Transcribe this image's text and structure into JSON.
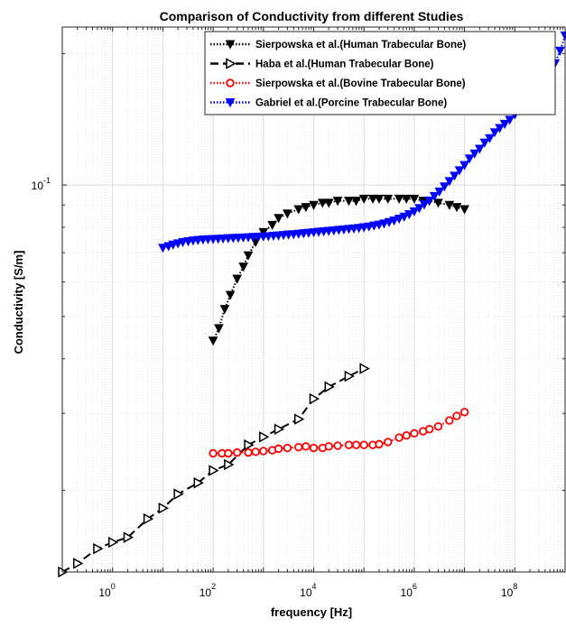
{
  "chart_data": {
    "type": "scatter",
    "title": "Comparison of Conductivity from different Studies",
    "xlabel": "frequency [Hz]",
    "ylabel": "Conductivity [S/m]",
    "xscale": "log",
    "yscale": "log",
    "xlim": [
      0.1,
      1000000000
    ],
    "ylim": [
      0.013,
      0.23
    ],
    "grid": true,
    "legend_position": "top-right",
    "x_ticks": [
      {
        "base": "10",
        "exp": "0",
        "value": 1
      },
      {
        "base": "10",
        "exp": "2",
        "value": 100
      },
      {
        "base": "10",
        "exp": "4",
        "value": 10000
      },
      {
        "base": "10",
        "exp": "6",
        "value": 1000000
      },
      {
        "base": "10",
        "exp": "8",
        "value": 100000000
      }
    ],
    "y_ticks": [
      {
        "base": "10",
        "exp": "-1",
        "value": 0.1
      }
    ],
    "series": [
      {
        "name": "Sierpowska et al.(Human Trabecular Bone)",
        "color": "#000000",
        "line": "dotted",
        "marker": "filled-triangle-down",
        "x": [
          100,
          130,
          170,
          220,
          300,
          400,
          500,
          700,
          1000,
          1500,
          2000,
          3000,
          5000,
          7000,
          10000,
          15000,
          20000,
          30000,
          50000,
          70000,
          100000,
          150000,
          200000,
          300000,
          500000,
          700000,
          1000000,
          1500000,
          2000000,
          3000000,
          5000000,
          7000000,
          10000000
        ],
        "y": [
          0.044,
          0.047,
          0.052,
          0.056,
          0.061,
          0.065,
          0.069,
          0.074,
          0.078,
          0.081,
          0.084,
          0.086,
          0.088,
          0.089,
          0.09,
          0.091,
          0.091,
          0.092,
          0.092,
          0.092,
          0.093,
          0.093,
          0.093,
          0.093,
          0.093,
          0.093,
          0.093,
          0.092,
          0.092,
          0.091,
          0.09,
          0.089,
          0.088
        ]
      },
      {
        "name": "Haba et al.(Human Trabecular Bone)",
        "color": "#000000",
        "line": "dashed",
        "marker": "open-triangle-right",
        "x": [
          0.1,
          0.2,
          0.5,
          1,
          2,
          5,
          10,
          20,
          50,
          100,
          200,
          500,
          1000,
          2000,
          5000,
          10000,
          20000,
          50000,
          100000
        ],
        "y": [
          0.013,
          0.0136,
          0.0147,
          0.0152,
          0.0156,
          0.0172,
          0.0182,
          0.0196,
          0.0208,
          0.0222,
          0.0229,
          0.0254,
          0.0265,
          0.0276,
          0.0291,
          0.0324,
          0.0345,
          0.0365,
          0.038
        ]
      },
      {
        "name": "Sierpowska et al.(Bovine Trabecular Bone)",
        "color": "#ff0000",
        "line": "dotted",
        "marker": "open-circle",
        "x": [
          100,
          150,
          200,
          300,
          500,
          700,
          1000,
          1500,
          2000,
          3000,
          5000,
          7000,
          10000,
          15000,
          20000,
          30000,
          50000,
          70000,
          100000,
          150000,
          200000,
          300000,
          500000,
          700000,
          1000000,
          1500000,
          2000000,
          3000000,
          5000000,
          7000000,
          10000000
        ],
        "y": [
          0.0243,
          0.0243,
          0.0243,
          0.0244,
          0.0244,
          0.0245,
          0.0246,
          0.0247,
          0.0249,
          0.025,
          0.0251,
          0.0252,
          0.025,
          0.025,
          0.0252,
          0.0253,
          0.0254,
          0.0254,
          0.0254,
          0.0254,
          0.0255,
          0.0258,
          0.0264,
          0.0267,
          0.027,
          0.0273,
          0.0276,
          0.028,
          0.0289,
          0.0296,
          0.0302
        ]
      },
      {
        "name": "Gabriel et al.(Porcine Trabecular Bone)",
        "color": "#0000ff",
        "line": "dotted",
        "marker": "filled-triangle-down",
        "x": [
          10,
          13,
          16,
          20,
          25,
          32,
          40,
          50,
          63,
          79,
          100,
          126,
          158,
          200,
          251,
          316,
          398,
          501,
          631,
          794,
          1000,
          1259,
          1585,
          1995,
          2512,
          3162,
          3981,
          5012,
          6310,
          7943,
          10000,
          12589,
          15849,
          19953,
          25119,
          31623,
          39811,
          50119,
          63096,
          79433,
          100000,
          125893,
          158489,
          199526,
          251189,
          316228,
          398107,
          501187,
          630957,
          794328,
          1000000,
          1258925,
          1584893,
          1995262,
          2511886,
          3162278,
          3981072,
          5011872,
          6309573,
          7943282,
          10000000,
          12589254,
          15848932,
          19952623,
          25118864,
          31622777,
          39810717,
          50118723,
          63095734,
          79432823,
          100000000,
          125892541,
          158489319,
          199526231,
          251188643,
          316227766,
          398107171,
          501187234,
          630957344,
          794328235,
          1000000000
        ],
        "y": [
          0.0718,
          0.0724,
          0.073,
          0.0735,
          0.074,
          0.0743,
          0.0746,
          0.0748,
          0.075,
          0.0751,
          0.0752,
          0.0753,
          0.0754,
          0.0755,
          0.0756,
          0.0757,
          0.0758,
          0.0759,
          0.076,
          0.0761,
          0.0762,
          0.0763,
          0.0765,
          0.0766,
          0.0768,
          0.077,
          0.0771,
          0.0773,
          0.0775,
          0.0777,
          0.0779,
          0.0781,
          0.0783,
          0.0785,
          0.0787,
          0.0789,
          0.0791,
          0.0793,
          0.0795,
          0.0797,
          0.08,
          0.0803,
          0.0807,
          0.0811,
          0.0816,
          0.0822,
          0.0829,
          0.0837,
          0.0846,
          0.0857,
          0.087,
          0.0885,
          0.0902,
          0.0921,
          0.0943,
          0.0966,
          0.0992,
          0.102,
          0.105,
          0.108,
          0.111,
          0.115,
          0.118,
          0.121,
          0.125,
          0.128,
          0.132,
          0.135,
          0.138,
          0.141,
          0.145,
          0.148,
          0.152,
          0.156,
          0.16,
          0.165,
          0.172,
          0.18,
          0.19,
          0.203,
          0.22
        ]
      }
    ]
  }
}
